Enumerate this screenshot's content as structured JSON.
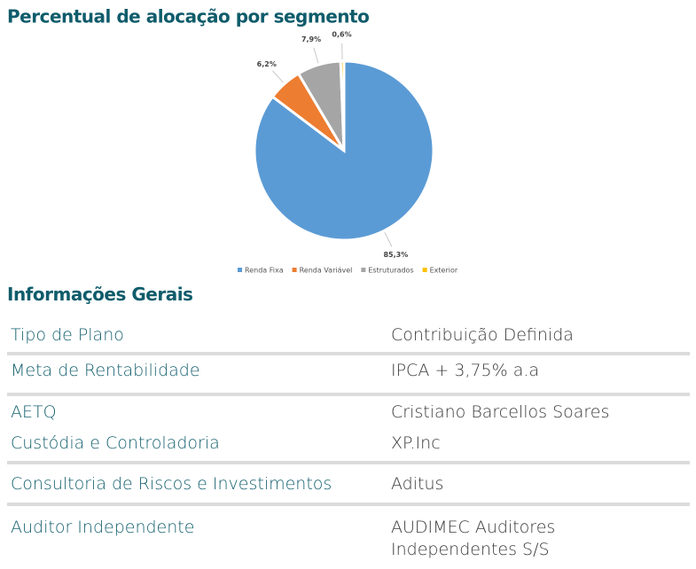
{
  "chart_data": {
    "type": "pie",
    "title": "Percentual de alocação por segmento",
    "categories": [
      "Renda Fixa",
      "Renda Variável",
      "Estruturados",
      "Exterior"
    ],
    "values": [
      85.3,
      6.2,
      7.9,
      0.6
    ],
    "value_labels": [
      "85,3%",
      "6,2%",
      "7,9%",
      "0,6%"
    ],
    "colors": [
      "#5b9bd5",
      "#ed7d31",
      "#a5a5a5",
      "#ffc000"
    ],
    "legend": "bottom"
  },
  "info": {
    "title": "Informações Gerais",
    "rows": [
      [
        "Tipo de Plano",
        "Contribuição Definida"
      ],
      [
        "Meta de Rentabilidade",
        "IPCA + 3,75% a.a"
      ],
      [
        "AETQ",
        "Cristiano Barcellos Soares"
      ],
      [
        "Custódia e Controladoria",
        "XP.Inc"
      ],
      [
        "Consultoria de Riscos e Investimentos",
        "Aditus"
      ],
      [
        "Auditor Independente",
        "AUDIMEC Auditores Independentes S/S"
      ]
    ]
  }
}
